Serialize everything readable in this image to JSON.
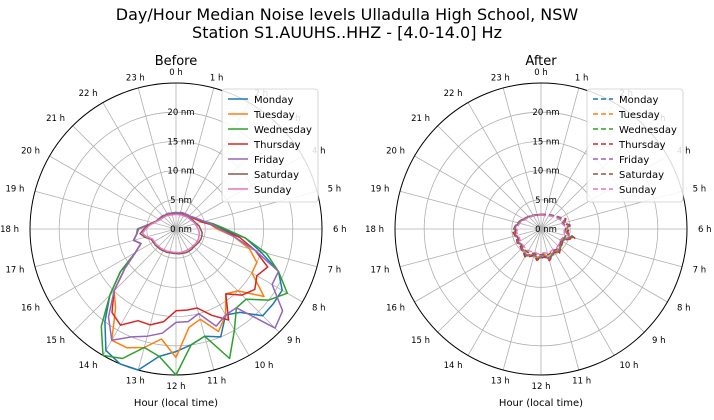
{
  "figure": {
    "title_line1": "Day/Hour Median Noise levels Ulladulla High School, NSW",
    "title_line2": "Station S1.AUUHS..HHZ - [4.0-14.0] Hz"
  },
  "colors": {
    "Monday": "#1f77b4",
    "Tuesday": "#ff7f0e",
    "Wednesday": "#2ca02c",
    "Thursday": "#d62728",
    "Friday": "#9467bd",
    "Saturday": "#8c564b",
    "Sunday": "#e377c2"
  },
  "chart_data": [
    {
      "type": "polar-line",
      "title": "Before",
      "xlabel": "Hour (local time)",
      "theta_labels": [
        "0 h",
        "1 h",
        "2 h",
        "3 h",
        "4 h",
        "5 h",
        "6 h",
        "7 h",
        "8 h",
        "9 h",
        "10 h",
        "11 h",
        "12 h",
        "13 h",
        "14 h",
        "15 h",
        "16 h",
        "17 h",
        "18 h",
        "19 h",
        "20 h",
        "21 h",
        "22 h",
        "23 h"
      ],
      "radial_ticks": [
        0,
        5,
        10,
        15,
        20
      ],
      "radial_tick_labels": [
        "0 nm",
        "5 nm",
        "10 nm",
        "15 nm",
        "20 nm"
      ],
      "rlim": [
        0,
        25
      ],
      "theta_direction": "clockwise",
      "theta_zero": "top",
      "line_style": "solid",
      "legend_position": "top-right",
      "x_hours": [
        0,
        0.5,
        1,
        1.5,
        2,
        2.5,
        3,
        3.5,
        4,
        4.5,
        5,
        5.5,
        6,
        6.5,
        7,
        7.5,
        8,
        8.5,
        9,
        9.5,
        10,
        10.5,
        11,
        11.5,
        12,
        12.5,
        13,
        13.5,
        14,
        14.5,
        15,
        15.5,
        16,
        16.5,
        17,
        17.5,
        18,
        18.5,
        19,
        19.5,
        20,
        20.5,
        21,
        21.5,
        22,
        22.5,
        23,
        23.5
      ],
      "series": [
        {
          "name": "Monday",
          "values": [
            2.8,
            2.8,
            2.9,
            3.0,
            3.0,
            3.1,
            3.2,
            3.4,
            3.8,
            4.3,
            5.0,
            6.5,
            8.0,
            12,
            15,
            19,
            21,
            21,
            21,
            18,
            17,
            20,
            19,
            20,
            21,
            22,
            25,
            25,
            24,
            20,
            16,
            12,
            8,
            6.5,
            7.5,
            6.8,
            6.6,
            5,
            4,
            3.6,
            3.4,
            3.3,
            3.2,
            3.0,
            3.0,
            2.9,
            2.8,
            2.8
          ]
        },
        {
          "name": "Tuesday",
          "values": [
            2.8,
            2.8,
            2.8,
            2.9,
            3.0,
            3.1,
            3.2,
            3.3,
            3.6,
            4.0,
            4.6,
            6,
            7,
            10,
            13,
            15,
            15,
            19,
            15,
            14,
            17,
            19,
            16,
            17,
            22,
            19,
            21,
            22,
            22,
            17,
            15,
            11,
            8,
            6.5,
            7.5,
            6.8,
            6.4,
            5,
            4,
            3.6,
            3.4,
            3.3,
            3.2,
            3.0,
            3.0,
            2.9,
            2.8,
            2.8
          ]
        },
        {
          "name": "Wednesday",
          "values": [
            2.8,
            2.8,
            2.9,
            3.0,
            3.0,
            3.1,
            3.2,
            3.4,
            3.8,
            4.2,
            5.0,
            6.5,
            8.5,
            12,
            16,
            19,
            22,
            20,
            17,
            17,
            20,
            24,
            19,
            20,
            25,
            22,
            21,
            24,
            25,
            21,
            16,
            12,
            8,
            6.5,
            7.5,
            6.8,
            6.5,
            5,
            4,
            3.6,
            3.4,
            3.3,
            3.2,
            3.0,
            3.0,
            2.9,
            2.8,
            2.8
          ]
        },
        {
          "name": "Thursday",
          "values": [
            2.8,
            2.8,
            2.8,
            2.9,
            3.0,
            3.1,
            3.2,
            3.3,
            3.6,
            4.0,
            4.6,
            6,
            7.5,
            11,
            14,
            17,
            16,
            17,
            16,
            14,
            18,
            16,
            14,
            14,
            14,
            16,
            17,
            17,
            19,
            18,
            15,
            11,
            8,
            6.5,
            7.5,
            6.8,
            6.4,
            5,
            4,
            3.6,
            3.4,
            3.3,
            3.2,
            3.0,
            3.0,
            2.9,
            2.8,
            2.8
          ]
        },
        {
          "name": "Friday",
          "values": [
            2.8,
            2.8,
            2.9,
            3.0,
            3.0,
            3.1,
            3.2,
            3.4,
            3.8,
            4.3,
            5.0,
            6.2,
            7.5,
            10,
            14,
            19,
            19,
            23,
            24,
            17,
            17,
            18,
            15,
            16,
            16,
            18,
            19,
            20,
            22,
            19,
            15,
            11,
            8,
            6.5,
            7.5,
            6.8,
            6.4,
            5,
            4,
            3.6,
            3.4,
            3.3,
            3.2,
            3.0,
            3.0,
            2.9,
            2.8,
            2.8
          ]
        },
        {
          "name": "Saturday",
          "values": [
            2.6,
            2.6,
            2.6,
            2.7,
            2.7,
            2.8,
            2.9,
            3.0,
            3.2,
            3.4,
            3.6,
            4.0,
            4.2,
            4.5,
            4.6,
            4.6,
            4.5,
            4.4,
            4.3,
            4.4,
            4.4,
            4.4,
            4.3,
            4.3,
            4.2,
            4.2,
            4.2,
            4.3,
            4.3,
            4.4,
            4.4,
            4.5,
            4.5,
            4.6,
            5.5,
            6.2,
            5.5,
            4.8,
            4.2,
            3.6,
            3.3,
            3.1,
            3.0,
            2.9,
            2.8,
            2.7,
            2.6,
            2.6
          ]
        },
        {
          "name": "Sunday",
          "values": [
            2.5,
            2.5,
            2.5,
            2.6,
            2.6,
            2.7,
            2.8,
            2.9,
            3.0,
            3.2,
            3.4,
            3.6,
            3.8,
            4.0,
            4.1,
            4.2,
            4.2,
            4.2,
            4.1,
            4.1,
            4.1,
            4.1,
            4.1,
            4.1,
            4.0,
            4.0,
            4.0,
            4.1,
            4.1,
            4.2,
            4.2,
            4.3,
            4.3,
            4.4,
            5.2,
            5.8,
            5.2,
            4.6,
            4.0,
            3.5,
            3.2,
            3.0,
            2.9,
            2.8,
            2.7,
            2.6,
            2.5,
            2.5
          ]
        }
      ]
    },
    {
      "type": "polar-line",
      "title": "After",
      "xlabel": "Hour (local time)",
      "theta_labels": [
        "0 h",
        "1 h",
        "2 h",
        "3 h",
        "4 h",
        "5 h",
        "6 h",
        "7 h",
        "8 h",
        "9 h",
        "10 h",
        "11 h",
        "12 h",
        "13 h",
        "14 h",
        "15 h",
        "16 h",
        "17 h",
        "18 h",
        "19 h",
        "20 h",
        "21 h",
        "22 h",
        "23 h"
      ],
      "radial_ticks": [
        0,
        5,
        10,
        15,
        20
      ],
      "radial_tick_labels": [
        "0 nm",
        "5 nm",
        "10 nm",
        "15 nm",
        "20 nm"
      ],
      "rlim": [
        0,
        25
      ],
      "theta_direction": "clockwise",
      "theta_zero": "top",
      "line_style": "dashed",
      "legend_position": "top-right",
      "x_hours": [
        0,
        0.5,
        1,
        1.5,
        2,
        2.5,
        3,
        3.5,
        4,
        4.5,
        5,
        5.5,
        6,
        6.5,
        7,
        7.5,
        8,
        8.5,
        9,
        9.5,
        10,
        10.5,
        11,
        11.5,
        12,
        12.5,
        13,
        13.5,
        14,
        14.5,
        15,
        15.5,
        16,
        16.5,
        17,
        17.5,
        18,
        18.5,
        19,
        19.5,
        20,
        20.5,
        21,
        21.5,
        22,
        22.5,
        23,
        23.5
      ],
      "series": [
        {
          "name": "Monday",
          "values": [
            2.5,
            2.5,
            2.6,
            2.7,
            2.8,
            3.0,
            3.2,
            3.5,
            3.8,
            4.5,
            4.0,
            4.8,
            4.6,
            4.4,
            5.5,
            4.5,
            4.0,
            4.3,
            4.6,
            4.9,
            4.4,
            4.8,
            5.3,
            4.6,
            4.8,
            5.1,
            4.5,
            4.9,
            5.2,
            4.8,
            4.6,
            4.4,
            4.5,
            4.3,
            4.4,
            4.6,
            4.5,
            4.3,
            4.0,
            3.7,
            3.4,
            3.2,
            3.0,
            2.8,
            2.7,
            2.6,
            2.5,
            2.5
          ]
        },
        {
          "name": "Tuesday",
          "values": [
            2.5,
            2.5,
            2.6,
            2.7,
            2.8,
            3.0,
            3.2,
            3.4,
            3.7,
            4.2,
            3.9,
            4.6,
            4.4,
            4.3,
            5.0,
            4.3,
            3.9,
            4.2,
            4.5,
            4.7,
            4.3,
            4.7,
            5.0,
            4.4,
            4.6,
            4.9,
            4.4,
            4.8,
            5.0,
            4.7,
            4.5,
            4.3,
            4.4,
            4.2,
            4.3,
            4.5,
            4.4,
            4.2,
            3.9,
            3.6,
            3.3,
            3.1,
            2.9,
            2.8,
            2.7,
            2.6,
            2.5,
            2.5
          ]
        },
        {
          "name": "Wednesday",
          "values": [
            2.5,
            2.5,
            2.6,
            2.7,
            2.8,
            3.0,
            3.2,
            3.5,
            3.9,
            4.6,
            4.1,
            4.9,
            4.7,
            4.5,
            5.6,
            4.6,
            4.1,
            4.4,
            4.7,
            5.0,
            4.5,
            4.9,
            5.4,
            4.7,
            4.9,
            5.2,
            4.6,
            5.0,
            5.3,
            4.9,
            4.7,
            4.5,
            4.6,
            4.4,
            4.5,
            4.7,
            4.6,
            4.4,
            4.1,
            3.8,
            3.5,
            3.2,
            3.0,
            2.8,
            2.7,
            2.6,
            2.5,
            2.5
          ]
        },
        {
          "name": "Thursday",
          "values": [
            2.5,
            2.5,
            2.6,
            2.7,
            2.8,
            3.0,
            3.2,
            3.5,
            3.9,
            4.6,
            4.2,
            5.0,
            4.8,
            4.6,
            6.0,
            4.8,
            4.3,
            4.5,
            4.7,
            5.2,
            4.6,
            5.0,
            5.6,
            4.8,
            5.0,
            5.4,
            4.7,
            5.1,
            5.5,
            5.0,
            4.8,
            4.6,
            4.7,
            4.5,
            4.6,
            4.8,
            4.7,
            4.4,
            4.1,
            3.8,
            3.5,
            3.2,
            3.0,
            2.8,
            2.7,
            2.6,
            2.5,
            2.5
          ]
        },
        {
          "name": "Friday",
          "values": [
            2.5,
            2.5,
            2.6,
            2.7,
            2.8,
            3.0,
            3.2,
            3.4,
            3.8,
            4.4,
            4.0,
            4.7,
            4.5,
            4.4,
            5.3,
            4.4,
            4.0,
            4.3,
            4.5,
            4.8,
            4.4,
            4.8,
            5.2,
            4.5,
            4.7,
            5.0,
            4.5,
            4.8,
            5.1,
            4.8,
            4.6,
            4.4,
            4.5,
            4.3,
            4.4,
            4.6,
            4.5,
            4.3,
            4.0,
            3.7,
            3.4,
            3.2,
            3.0,
            2.8,
            2.7,
            2.6,
            2.5,
            2.5
          ]
        },
        {
          "name": "Saturday",
          "values": [
            2.4,
            2.4,
            2.5,
            2.6,
            2.7,
            2.9,
            3.1,
            3.3,
            3.6,
            4.0,
            3.8,
            4.3,
            4.2,
            4.1,
            4.4,
            4.2,
            3.9,
            4.1,
            4.3,
            4.4,
            4.2,
            4.4,
            4.6,
            4.3,
            4.4,
            4.6,
            4.3,
            4.5,
            4.6,
            4.5,
            4.4,
            4.3,
            4.3,
            4.2,
            4.3,
            4.4,
            4.3,
            4.1,
            3.9,
            3.6,
            3.3,
            3.1,
            2.9,
            2.7,
            2.6,
            2.5,
            2.4,
            2.4
          ]
        },
        {
          "name": "Sunday",
          "values": [
            2.4,
            2.4,
            2.4,
            2.5,
            2.6,
            2.8,
            3.0,
            3.2,
            3.5,
            3.8,
            3.7,
            4.1,
            4.0,
            4.0,
            4.2,
            4.0,
            3.8,
            4.0,
            4.1,
            4.2,
            4.1,
            4.2,
            4.3,
            4.1,
            4.2,
            4.3,
            4.1,
            4.2,
            4.3,
            4.2,
            4.2,
            4.1,
            4.1,
            4.0,
            4.1,
            4.2,
            4.1,
            4.0,
            3.8,
            3.5,
            3.2,
            3.0,
            2.8,
            2.7,
            2.6,
            2.5,
            2.4,
            2.4
          ]
        }
      ]
    }
  ]
}
